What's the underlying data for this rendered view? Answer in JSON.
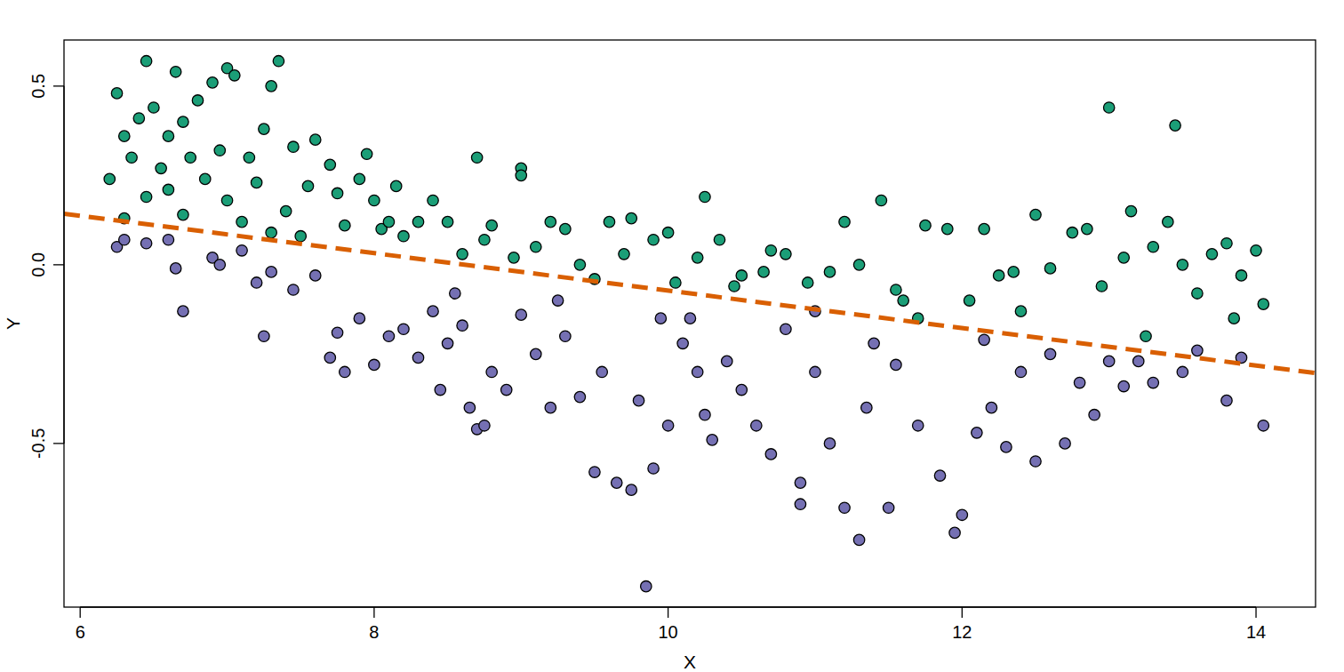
{
  "chart_data": {
    "type": "scatter",
    "x_label": "X",
    "y_label": "Y",
    "xlim": [
      5.89,
      14.405
    ],
    "ylim": [
      -0.958,
      0.629
    ],
    "xticks": [
      6,
      8,
      10,
      12,
      14
    ],
    "yticks": [
      -0.5,
      {
        "value": 0,
        "label": "0.0"
      },
      0.5
    ],
    "grid": false,
    "series": [
      {
        "type": "scatter",
        "marker": "circle",
        "color": "#1b9e77",
        "x": [
          6.2,
          6.25,
          6.3,
          6.3,
          6.35,
          6.4,
          6.45,
          6.45,
          6.5,
          6.55,
          6.6,
          6.6,
          6.65,
          6.7,
          6.7,
          6.75,
          6.8,
          6.85,
          6.9,
          6.95,
          7.0,
          7.0,
          7.05,
          7.1,
          7.15,
          7.2,
          7.25,
          7.3,
          7.3,
          7.35,
          7.4,
          7.45,
          7.5,
          7.55,
          7.6,
          7.7,
          7.75,
          7.8,
          7.9,
          7.95,
          8.0,
          8.05,
          8.1,
          8.15,
          8.2,
          8.3,
          8.4,
          8.5,
          8.6,
          8.7,
          8.75,
          8.8,
          8.95,
          9.0,
          9.0,
          9.1,
          9.2,
          9.3,
          9.4,
          9.5,
          9.6,
          9.7,
          9.75,
          9.9,
          10.0,
          10.05,
          10.2,
          10.25,
          10.35,
          10.45,
          10.5,
          10.65,
          10.7,
          10.8,
          10.95,
          11.1,
          11.2,
          11.3,
          11.45,
          11.55,
          11.7,
          11.75,
          11.9,
          12.05,
          12.15,
          12.25,
          12.35,
          12.5,
          12.6,
          12.75,
          12.85,
          12.95,
          13.0,
          13.1,
          13.15,
          13.3,
          13.4,
          13.45,
          13.5,
          13.6,
          13.7,
          13.8,
          13.9,
          14.0,
          14.05,
          13.85,
          13.25,
          12.4,
          11.6
        ],
        "values": [
          0.24,
          0.48,
          0.36,
          0.13,
          0.3,
          0.41,
          0.57,
          0.19,
          0.44,
          0.27,
          0.36,
          0.21,
          0.54,
          0.4,
          0.14,
          0.3,
          0.46,
          0.24,
          0.51,
          0.32,
          0.55,
          0.18,
          0.53,
          0.12,
          0.3,
          0.23,
          0.38,
          0.5,
          0.09,
          0.57,
          0.15,
          0.33,
          0.08,
          0.22,
          0.35,
          0.28,
          0.2,
          0.11,
          0.24,
          0.31,
          0.18,
          0.1,
          0.12,
          0.22,
          0.08,
          0.12,
          0.18,
          0.12,
          0.03,
          0.3,
          0.07,
          0.11,
          0.02,
          0.27,
          0.25,
          0.05,
          0.12,
          0.1,
          0.0,
          -0.04,
          0.12,
          0.03,
          0.13,
          0.07,
          0.09,
          -0.05,
          0.02,
          0.19,
          0.07,
          -0.06,
          -0.03,
          -0.02,
          0.04,
          0.03,
          -0.05,
          -0.02,
          0.12,
          0.0,
          0.18,
          -0.07,
          -0.15,
          0.11,
          0.1,
          -0.1,
          0.1,
          -0.03,
          -0.02,
          0.14,
          -0.01,
          0.09,
          0.1,
          -0.06,
          0.44,
          0.02,
          0.15,
          0.05,
          0.12,
          0.39,
          0.0,
          -0.08,
          0.03,
          0.06,
          -0.03,
          0.04,
          -0.11,
          -0.15,
          -0.2,
          -0.13,
          -0.1
        ]
      },
      {
        "type": "scatter",
        "marker": "circle",
        "color": "#7570b3",
        "x": [
          6.25,
          6.3,
          6.45,
          6.6,
          6.65,
          6.7,
          6.9,
          6.95,
          7.1,
          7.2,
          7.25,
          7.3,
          7.45,
          7.6,
          7.7,
          7.75,
          7.8,
          7.9,
          8.0,
          8.1,
          8.2,
          8.3,
          8.4,
          8.45,
          8.5,
          8.6,
          8.65,
          8.7,
          8.75,
          8.8,
          8.9,
          9.0,
          9.1,
          9.2,
          9.3,
          9.4,
          9.5,
          9.55,
          9.65,
          9.75,
          9.8,
          9.85,
          9.9,
          9.95,
          10.0,
          10.1,
          10.2,
          10.25,
          10.3,
          10.4,
          10.5,
          10.6,
          10.7,
          10.8,
          10.9,
          10.9,
          11.0,
          11.1,
          11.2,
          11.3,
          11.35,
          11.5,
          11.55,
          11.7,
          11.85,
          11.95,
          12.0,
          12.1,
          12.2,
          12.3,
          12.4,
          12.5,
          12.6,
          12.7,
          12.8,
          12.9,
          13.0,
          13.1,
          13.3,
          13.5,
          13.6,
          13.8,
          14.05,
          13.9,
          11.4,
          10.15,
          9.25,
          8.55,
          12.15,
          11.0,
          13.2
        ],
        "values": [
          0.05,
          0.07,
          0.06,
          0.07,
          -0.01,
          -0.13,
          0.02,
          0.0,
          0.04,
          -0.05,
          -0.2,
          -0.02,
          -0.07,
          -0.03,
          -0.26,
          -0.19,
          -0.3,
          -0.15,
          -0.28,
          -0.2,
          -0.18,
          -0.26,
          -0.13,
          -0.35,
          -0.22,
          -0.17,
          -0.4,
          -0.46,
          -0.45,
          -0.3,
          -0.35,
          -0.14,
          -0.25,
          -0.4,
          -0.2,
          -0.37,
          -0.58,
          -0.3,
          -0.61,
          -0.63,
          -0.38,
          -0.9,
          -0.57,
          -0.15,
          -0.45,
          -0.22,
          -0.3,
          -0.42,
          -0.49,
          -0.27,
          -0.35,
          -0.45,
          -0.53,
          -0.18,
          -0.61,
          -0.67,
          -0.3,
          -0.5,
          -0.68,
          -0.77,
          -0.4,
          -0.68,
          -0.28,
          -0.45,
          -0.59,
          -0.75,
          -0.7,
          -0.47,
          -0.4,
          -0.51,
          -0.3,
          -0.55,
          -0.25,
          -0.5,
          -0.33,
          -0.42,
          -0.27,
          -0.34,
          -0.33,
          -0.3,
          -0.24,
          -0.38,
          -0.45,
          -0.26,
          -0.22,
          -0.15,
          -0.1,
          -0.08,
          -0.21,
          -0.13,
          -0.27
        ]
      },
      {
        "type": "line",
        "line_style": "dashed",
        "color": "#d95f02",
        "x": [
          5.89,
          14.405
        ],
        "values": [
          0.143,
          -0.303
        ]
      }
    ]
  }
}
